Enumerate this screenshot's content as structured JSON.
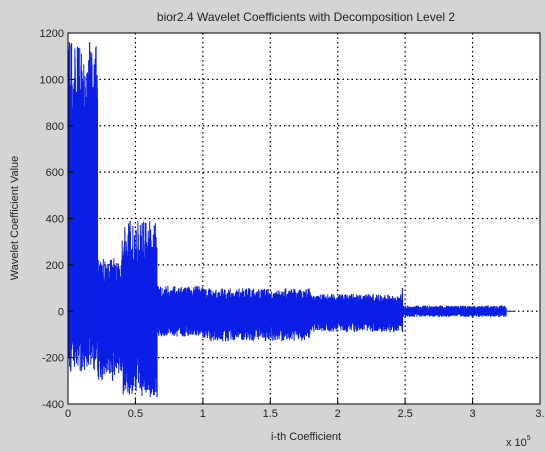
{
  "chart_data": {
    "type": "line",
    "title": "bior2.4 Wavelet Coefficients with Decomposition Level 2",
    "xlabel": "i-th Coefficient",
    "ylabel": "Wavelet Coefficient Value",
    "x_multiplier_label": "x 10",
    "x_multiplier_exponent": "5",
    "xlim": [
      0,
      3.5
    ],
    "ylim": [
      -400,
      1200
    ],
    "x_ticks": [
      0,
      0.5,
      1,
      1.5,
      2,
      2.5,
      3,
      3.5
    ],
    "x_tick_labels": [
      "0",
      "0.5",
      "1",
      "1.5",
      "2",
      "2.5",
      "3",
      "3."
    ],
    "y_ticks": [
      -400,
      -200,
      0,
      200,
      400,
      600,
      800,
      1000,
      1200
    ],
    "y_tick_labels": [
      "-400",
      "-200",
      "0",
      "200",
      "400",
      "600",
      "800",
      "1000",
      "1200"
    ],
    "grid": true,
    "grid_style": "dotted",
    "series_color": "#0a1ee6",
    "segments": [
      {
        "x_range": [
          0,
          0.22
        ],
        "y_min_range": [
          -260,
          -80
        ],
        "y_max_range": [
          850,
          1160
        ]
      },
      {
        "x_range": [
          0.22,
          0.4
        ],
        "y_min_range": [
          -300,
          -150
        ],
        "y_max_range": [
          120,
          230
        ]
      },
      {
        "x_range": [
          0.4,
          0.66
        ],
        "y_min_range": [
          -370,
          -220
        ],
        "y_max_range": [
          180,
          390
        ]
      },
      {
        "x_range": [
          0.66,
          1.0
        ],
        "y_min_range": [
          -110,
          -60
        ],
        "y_max_range": [
          60,
          110
        ]
      },
      {
        "x_range": [
          1.0,
          1.8
        ],
        "y_min_range": [
          -130,
          -70
        ],
        "y_max_range": [
          50,
          100
        ]
      },
      {
        "x_range": [
          1.8,
          2.48
        ],
        "y_min_range": [
          -90,
          -45
        ],
        "y_max_range": [
          35,
          75
        ]
      },
      {
        "x_range": [
          2.48,
          3.25
        ],
        "y_min_range": [
          -25,
          -10
        ],
        "y_max_range": [
          10,
          25
        ]
      }
    ],
    "peaks": [
      {
        "x": 0.01,
        "y": 1160
      },
      {
        "x": 0.07,
        "y": 1140
      },
      {
        "x": 0.16,
        "y": 1160
      },
      {
        "x": 0.46,
        "y": 390
      },
      {
        "x": 0.55,
        "y": 380
      },
      {
        "x": 0.64,
        "y": 370
      },
      {
        "x": 0.66,
        "y": -370
      },
      {
        "x": 0.02,
        "y": -260
      },
      {
        "x": 0.11,
        "y": -240
      },
      {
        "x": 0.33,
        "y": -300
      },
      {
        "x": 2.48,
        "y": 100
      },
      {
        "x": 2.48,
        "y": -90
      }
    ]
  }
}
